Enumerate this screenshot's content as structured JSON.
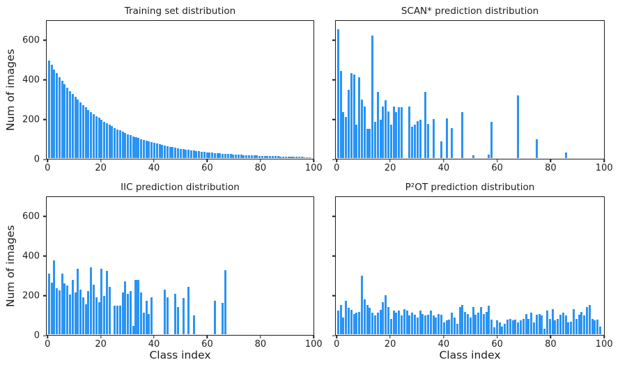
{
  "colors": {
    "bar": "#2a94f4",
    "spine": "#1c1c1c",
    "background": "#ffffff"
  },
  "chart_data": [
    {
      "id": "training",
      "type": "bar",
      "title": "Training set distribution",
      "xlabel": "",
      "ylabel": "Num of images",
      "show_ytick_labels": true,
      "xlim": [
        -0.6,
        100.2
      ],
      "ylim": [
        0,
        700
      ],
      "xticks": [
        0,
        20,
        40,
        60,
        80,
        100
      ],
      "yticks": [
        0,
        200,
        400,
        600
      ],
      "grid": false,
      "legend": "none",
      "x": "class index 0-99",
      "values": [
        500,
        477,
        455,
        434,
        415,
        396,
        378,
        360,
        344,
        328,
        313,
        299,
        285,
        272,
        260,
        248,
        237,
        226,
        216,
        206,
        196,
        187,
        179,
        171,
        163,
        155,
        148,
        142,
        135,
        129,
        123,
        117,
        112,
        107,
        102,
        97,
        93,
        89,
        85,
        81,
        77,
        74,
        70,
        67,
        64,
        61,
        58,
        56,
        53,
        51,
        48,
        46,
        44,
        42,
        40,
        38,
        37,
        35,
        33,
        32,
        30,
        29,
        28,
        26,
        25,
        24,
        23,
        22,
        21,
        20,
        19,
        18,
        17,
        17,
        16,
        15,
        14,
        14,
        13,
        13,
        12,
        11,
        11,
        10,
        10,
        10,
        9,
        9,
        8,
        8,
        8,
        7,
        7,
        7,
        6,
        6,
        6,
        5,
        5,
        5
      ]
    },
    {
      "id": "scan",
      "type": "bar",
      "title": "SCAN* prediction distribution",
      "xlabel": "",
      "ylabel": "",
      "show_ytick_labels": false,
      "xlim": [
        -0.6,
        100.2
      ],
      "ylim": [
        0,
        700
      ],
      "xticks": [
        0,
        20,
        40,
        60,
        80,
        100
      ],
      "yticks": [
        0,
        200,
        400,
        600
      ],
      "grid": false,
      "legend": "none",
      "x": "class index 0-99",
      "values": [
        660,
        445,
        235,
        210,
        350,
        435,
        430,
        170,
        415,
        300,
        265,
        150,
        150,
        630,
        185,
        340,
        195,
        265,
        295,
        240,
        170,
        265,
        235,
        260,
        260,
        0,
        0,
        265,
        160,
        170,
        190,
        195,
        0,
        340,
        175,
        0,
        200,
        0,
        0,
        85,
        0,
        205,
        0,
        155,
        0,
        0,
        0,
        235,
        0,
        0,
        0,
        15,
        0,
        0,
        0,
        0,
        0,
        18,
        185,
        0,
        0,
        0,
        0,
        0,
        0,
        0,
        0,
        0,
        320,
        0,
        0,
        0,
        0,
        0,
        0,
        95,
        0,
        0,
        0,
        0,
        0,
        0,
        0,
        0,
        0,
        0,
        30,
        0,
        0,
        0,
        0,
        0,
        0,
        0,
        0,
        0,
        0,
        0,
        0,
        0
      ]
    },
    {
      "id": "iic",
      "type": "bar",
      "title": "IIC prediction distribution",
      "xlabel": "Class index",
      "ylabel": "Num of images",
      "show_ytick_labels": true,
      "xlim": [
        -0.6,
        100.2
      ],
      "ylim": [
        0,
        700
      ],
      "xticks": [
        0,
        20,
        40,
        60,
        80,
        100
      ],
      "yticks": [
        0,
        200,
        400,
        600
      ],
      "grid": false,
      "legend": "none",
      "x": "class index 0-99",
      "values": [
        310,
        265,
        380,
        235,
        225,
        310,
        260,
        250,
        202,
        278,
        215,
        335,
        228,
        190,
        152,
        222,
        342,
        255,
        190,
        165,
        335,
        195,
        325,
        243,
        0,
        147,
        145,
        147,
        215,
        270,
        207,
        220,
        42,
        278,
        278,
        215,
        112,
        172,
        105,
        188,
        0,
        0,
        0,
        0,
        230,
        190,
        0,
        0,
        206,
        140,
        0,
        187,
        0,
        242,
        0,
        95,
        0,
        0,
        0,
        0,
        0,
        0,
        0,
        172,
        0,
        0,
        162,
        330,
        0,
        0,
        0,
        0,
        0,
        0,
        0,
        0,
        0,
        0,
        0,
        0,
        0,
        0,
        0,
        0,
        0,
        0,
        0,
        0,
        0,
        0,
        0,
        0,
        0,
        0,
        0,
        0,
        0,
        0,
        0,
        0
      ]
    },
    {
      "id": "p2ot",
      "type": "bar",
      "title": "P²OT prediction distribution",
      "xlabel": "Class index",
      "ylabel": "",
      "show_ytick_labels": false,
      "xlim": [
        -0.6,
        100.2
      ],
      "ylim": [
        0,
        700
      ],
      "xticks": [
        0,
        20,
        40,
        60,
        80,
        100
      ],
      "yticks": [
        0,
        200,
        400,
        600
      ],
      "grid": false,
      "legend": "none",
      "x": "class index 0-99",
      "values": [
        120,
        150,
        85,
        170,
        135,
        125,
        105,
        110,
        115,
        300,
        180,
        150,
        135,
        110,
        95,
        110,
        125,
        165,
        200,
        140,
        80,
        120,
        110,
        120,
        95,
        130,
        120,
        95,
        110,
        100,
        85,
        120,
        105,
        95,
        100,
        120,
        95,
        85,
        105,
        100,
        60,
        70,
        75,
        110,
        85,
        55,
        140,
        150,
        115,
        105,
        85,
        140,
        100,
        110,
        140,
        105,
        115,
        145,
        75,
        35,
        70,
        60,
        40,
        55,
        75,
        80,
        70,
        75,
        60,
        70,
        80,
        105,
        80,
        110,
        60,
        100,
        105,
        95,
        30,
        120,
        80,
        130,
        70,
        80,
        100,
        110,
        95,
        60,
        65,
        130,
        80,
        100,
        115,
        95,
        140,
        150,
        80,
        70,
        75,
        40
      ]
    }
  ]
}
